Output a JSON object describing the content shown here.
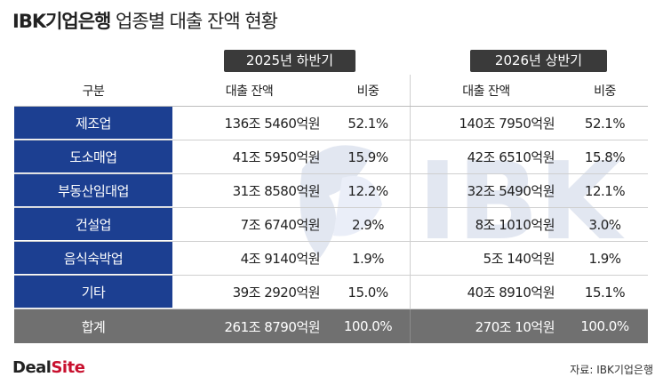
{
  "title": {
    "bold": "IBK기업은행",
    "rest": " 업종별 대출 잔액 현황"
  },
  "periods": {
    "first": "2025년 하반기",
    "second": "2026년 상반기"
  },
  "header": {
    "category": "구분",
    "amount": "대출 잔액",
    "share": "비중"
  },
  "rows": [
    {
      "category": "제조업",
      "amount1": "136조 5460억원",
      "share1": "52.1%",
      "amount2": "140조 7950억원",
      "share2": "52.1%"
    },
    {
      "category": "도소매업",
      "amount1": "41조 5950억원",
      "share1": "15.9%",
      "amount2": "42조 6510억원",
      "share2": "15.8%"
    },
    {
      "category": "부동산임대업",
      "amount1": "31조 8580억원",
      "share1": "12.2%",
      "amount2": "32조 5490억원",
      "share2": "12.1%"
    },
    {
      "category": "건설업",
      "amount1": "7조 6740억원",
      "share1": "2.9%",
      "amount2": "8조 1010억원",
      "share2": "3.0%"
    },
    {
      "category": "음식숙박업",
      "amount1": "4조 9140억원",
      "share1": "1.9%",
      "amount2": "5조 140억원",
      "share2": "1.9%"
    },
    {
      "category": "기타",
      "amount1": "39조 2920억원",
      "share1": "15.0%",
      "amount2": "40조 8910억원",
      "share2": "15.1%"
    }
  ],
  "total": {
    "category": "합계",
    "amount1": "261조 8790억원",
    "share1": "100.0%",
    "amount2": "270조 10억원",
    "share2": "100.0%"
  },
  "watermark": "IBK",
  "logo": {
    "part1": "Deal",
    "part2": "Site"
  },
  "source": "자료: IBK기업은행",
  "colors": {
    "category_bg": "#1c3f91",
    "total_bg": "#707070",
    "badge_bg": "#3a3a3a",
    "logo_accent": "#c8102e"
  }
}
